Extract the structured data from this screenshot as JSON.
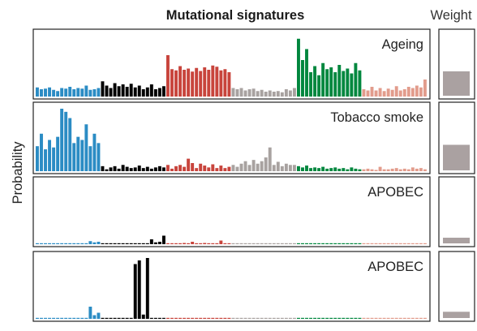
{
  "figure": {
    "title": "Mutational signatures",
    "weight_title": "Weight",
    "ylabel": "Probability"
  },
  "colors": {
    "groups": [
      "#2b8cc4",
      "#000000",
      "#c8443c",
      "#a8a2a0",
      "#00873e",
      "#e29c8c"
    ],
    "weight_bar": "#aaa1a1",
    "frame": "#222222"
  },
  "chart_data": [
    {
      "type": "bar",
      "title": "Ageing",
      "ylabel": "Probability",
      "ylim": [
        0,
        1
      ],
      "grid": false,
      "values": [
        0.15,
        0.12,
        0.13,
        0.15,
        0.11,
        0.09,
        0.14,
        0.13,
        0.16,
        0.12,
        0.14,
        0.13,
        0.18,
        0.11,
        0.12,
        0.14,
        0.25,
        0.18,
        0.14,
        0.22,
        0.17,
        0.2,
        0.16,
        0.21,
        0.15,
        0.18,
        0.12,
        0.15,
        0.2,
        0.12,
        0.14,
        0.17,
        0.68,
        0.45,
        0.43,
        0.5,
        0.44,
        0.46,
        0.41,
        0.47,
        0.42,
        0.48,
        0.44,
        0.51,
        0.49,
        0.43,
        0.45,
        0.4,
        0.14,
        0.12,
        0.14,
        0.1,
        0.12,
        0.13,
        0.09,
        0.11,
        0.08,
        0.1,
        0.08,
        0.09,
        0.07,
        0.12,
        0.1,
        0.14,
        0.95,
        0.6,
        0.78,
        0.4,
        0.5,
        0.35,
        0.55,
        0.45,
        0.48,
        0.4,
        0.52,
        0.42,
        0.46,
        0.38,
        0.55,
        0.43,
        0.12,
        0.1,
        0.16,
        0.1,
        0.14,
        0.09,
        0.13,
        0.11,
        0.17,
        0.1,
        0.12,
        0.16,
        0.14,
        0.18,
        0.15,
        0.28
      ],
      "weight": 0.43
    },
    {
      "type": "bar",
      "title": "Tobacco smoke",
      "ylabel": "Probability",
      "ylim": [
        0,
        1
      ],
      "grid": false,
      "values": [
        0.4,
        0.6,
        0.35,
        0.5,
        0.38,
        0.55,
        1.0,
        0.95,
        0.85,
        0.45,
        0.55,
        0.5,
        0.75,
        0.4,
        0.6,
        0.45,
        0.08,
        0.03,
        0.06,
        0.08,
        0.04,
        0.1,
        0.07,
        0.05,
        0.06,
        0.09,
        0.05,
        0.07,
        0.04,
        0.06,
        0.08,
        0.06,
        0.1,
        0.04,
        0.08,
        0.1,
        0.07,
        0.2,
        0.13,
        0.05,
        0.12,
        0.09,
        0.06,
        0.11,
        0.05,
        0.09,
        0.05,
        0.07,
        0.1,
        0.07,
        0.12,
        0.16,
        0.1,
        0.18,
        0.12,
        0.16,
        0.22,
        0.38,
        0.1,
        0.15,
        0.08,
        0.12,
        0.1,
        0.1,
        0.08,
        0.06,
        0.09,
        0.05,
        0.06,
        0.05,
        0.07,
        0.04,
        0.05,
        0.06,
        0.04,
        0.05,
        0.03,
        0.06,
        0.04,
        0.03,
        0.03,
        0.04,
        0.03,
        0.02,
        0.07,
        0.03,
        0.03,
        0.04,
        0.05,
        0.03,
        0.04,
        0.03,
        0.06,
        0.04,
        0.05,
        0.03
      ],
      "weight": 0.45
    },
    {
      "type": "bar",
      "title": "APOBEC",
      "ylabel": "Probability",
      "ylim": [
        0,
        1
      ],
      "grid": false,
      "values": [
        0.01,
        0.01,
        0.01,
        0.01,
        0.01,
        0.01,
        0.01,
        0.01,
        0.01,
        0.01,
        0.01,
        0.01,
        0.01,
        0.05,
        0.03,
        0.04,
        0.01,
        0.01,
        0.01,
        0.01,
        0.01,
        0.01,
        0.01,
        0.01,
        0.01,
        0.01,
        0.01,
        0.01,
        0.08,
        0.03,
        0.04,
        0.14,
        0.01,
        0.01,
        0.01,
        0.01,
        0.02,
        0.01,
        0.04,
        0.01,
        0.01,
        0.02,
        0.01,
        0.01,
        0.01,
        0.06,
        0.01,
        0.01,
        0.01,
        0.01,
        0.01,
        0.01,
        0.01,
        0.01,
        0.01,
        0.01,
        0.01,
        0.01,
        0.01,
        0.01,
        0.01,
        0.01,
        0.01,
        0.01,
        0.01,
        0.01,
        0.01,
        0.01,
        0.01,
        0.01,
        0.01,
        0.01,
        0.01,
        0.01,
        0.01,
        0.01,
        0.01,
        0.01,
        0.01,
        0.01,
        0.01,
        0.01,
        0.01,
        0.01,
        0.01,
        0.01,
        0.01,
        0.01,
        0.01,
        0.01,
        0.01,
        0.01,
        0.01,
        0.01,
        0.01,
        0.01
      ],
      "weight": 0.1
    },
    {
      "type": "bar",
      "title": "APOBEC",
      "ylabel": "Probability",
      "ylim": [
        0,
        1
      ],
      "grid": false,
      "values": [
        0.01,
        0.01,
        0.01,
        0.01,
        0.01,
        0.01,
        0.01,
        0.01,
        0.01,
        0.01,
        0.01,
        0.01,
        0.01,
        0.2,
        0.06,
        0.1,
        0.01,
        0.01,
        0.01,
        0.01,
        0.01,
        0.01,
        0.01,
        0.01,
        0.9,
        0.96,
        0.07,
        1.0,
        0.01,
        0.01,
        0.01,
        0.01,
        0.01,
        0.01,
        0.01,
        0.01,
        0.01,
        0.01,
        0.01,
        0.01,
        0.01,
        0.01,
        0.01,
        0.01,
        0.01,
        0.01,
        0.01,
        0.01,
        0.01,
        0.01,
        0.01,
        0.01,
        0.01,
        0.01,
        0.01,
        0.01,
        0.01,
        0.01,
        0.01,
        0.01,
        0.01,
        0.01,
        0.01,
        0.01,
        0.01,
        0.01,
        0.01,
        0.01,
        0.01,
        0.01,
        0.01,
        0.01,
        0.01,
        0.01,
        0.01,
        0.01,
        0.01,
        0.01,
        0.01,
        0.01,
        0.01,
        0.01,
        0.01,
        0.01,
        0.01,
        0.01,
        0.01,
        0.01,
        0.01,
        0.01,
        0.01,
        0.01,
        0.01,
        0.01,
        0.01,
        0.01
      ],
      "weight": 0.11
    }
  ]
}
